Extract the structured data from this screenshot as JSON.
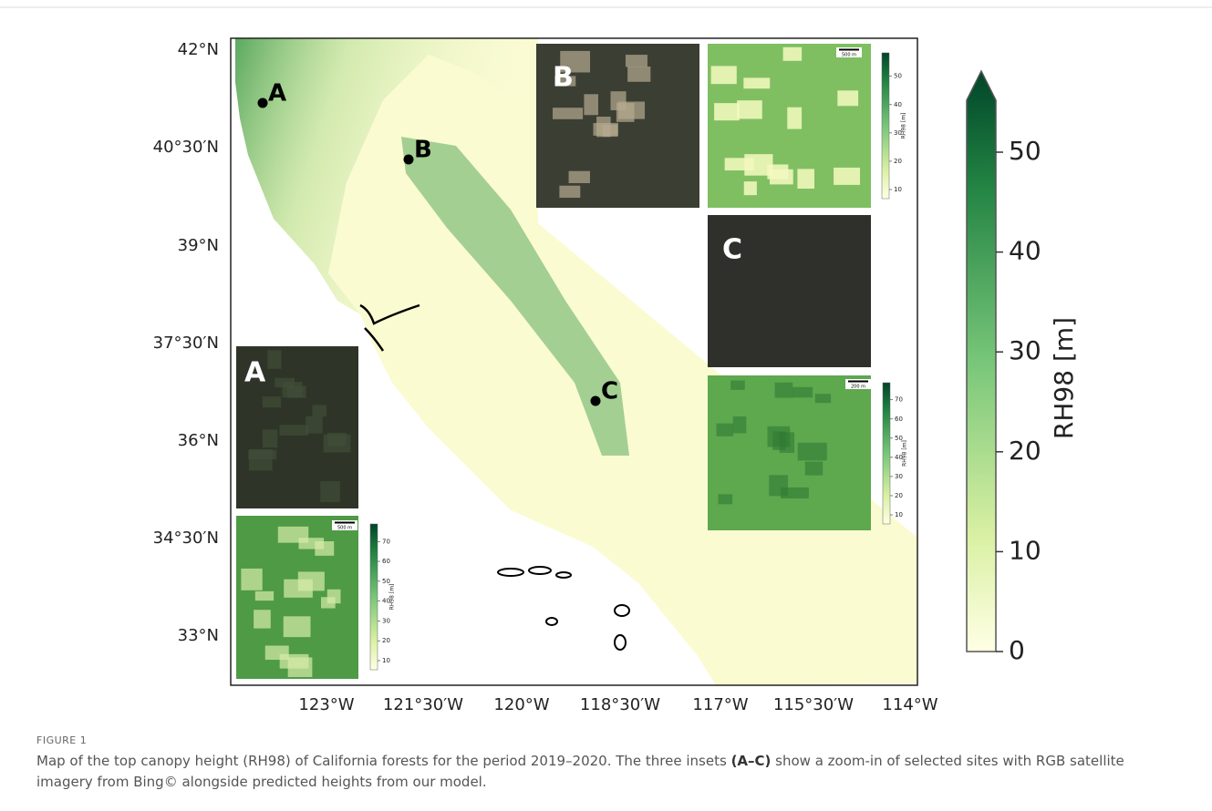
{
  "map": {
    "lat_labels": [
      "42°N",
      "40°30′N",
      "39°N",
      "37°30′N",
      "36°N",
      "34°30′N",
      "33°N"
    ],
    "lon_labels": [
      "123°W",
      "121°30′W",
      "120°W",
      "118°30′W",
      "117°W",
      "115°30′W",
      "114°W"
    ],
    "sites": [
      "A",
      "B",
      "C"
    ]
  },
  "colorbar": {
    "label": "RH98 [m]",
    "ticks": [
      0,
      10,
      20,
      30,
      40,
      50
    ]
  },
  "insets": [
    {
      "letter": "B",
      "scale_bar": "500 m",
      "colorbar_label": "RH98 [m]",
      "colorbar_ticks": [
        10,
        20,
        30,
        40,
        50
      ]
    },
    {
      "letter": "C",
      "scale_bar": "200 m",
      "colorbar_label": "RH98 [m]",
      "colorbar_ticks": [
        10,
        20,
        30,
        40,
        50,
        60,
        70
      ]
    },
    {
      "letter": "A",
      "scale_bar": "500 m",
      "colorbar_label": "RH98 [m]",
      "colorbar_ticks": [
        10,
        20,
        30,
        40,
        50,
        60,
        70
      ]
    }
  ],
  "caption": {
    "figure_label": "FIGURE 1",
    "text_before": "Map of the top canopy height (RH98) of California forests for the period 2019–2020. The three insets ",
    "text_bold": "(A–C)",
    "text_after": " show a zoom-in of selected sites with RGB satellite imagery from Bing© alongside predicted heights from our model."
  }
}
